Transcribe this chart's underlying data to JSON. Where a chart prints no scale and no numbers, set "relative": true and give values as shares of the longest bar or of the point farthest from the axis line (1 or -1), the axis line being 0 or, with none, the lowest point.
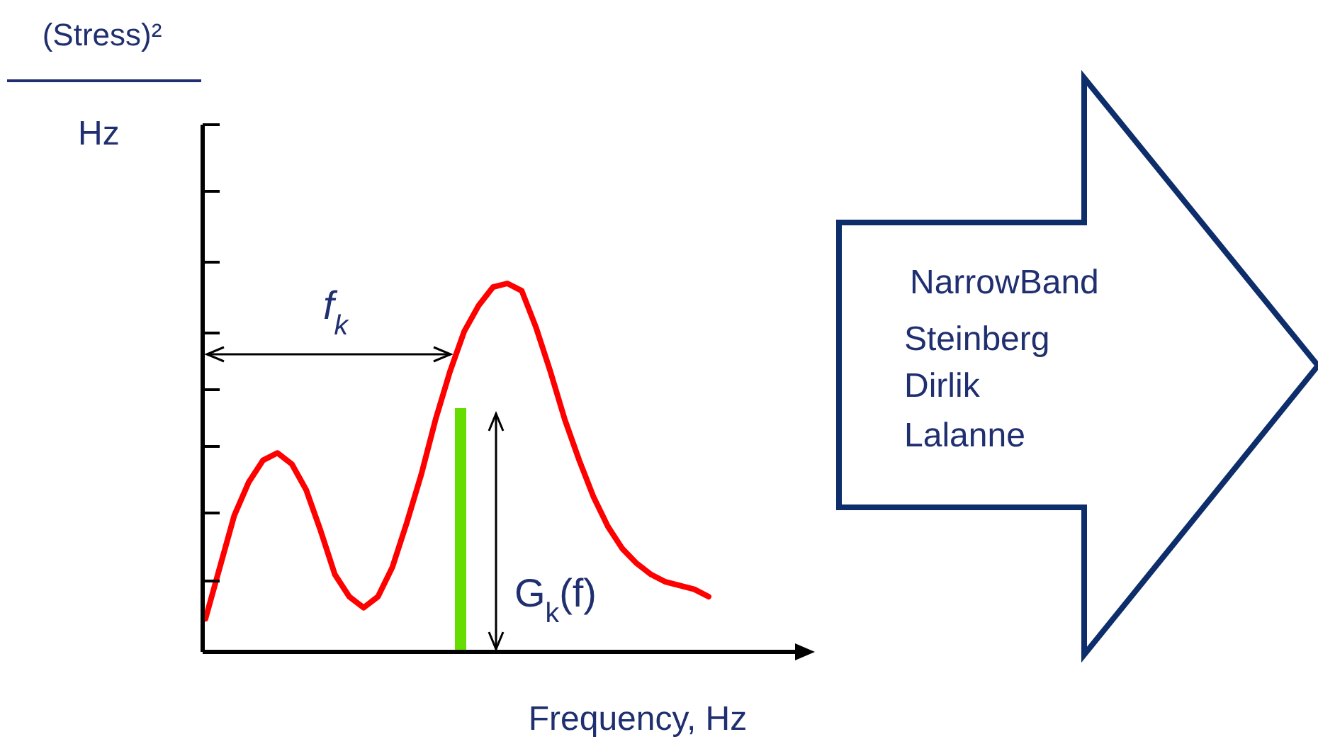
{
  "chart_data": {
    "type": "line",
    "relative": true,
    "xlabel": "Frequency, Hz",
    "categories": [
      null,
      null,
      null,
      null,
      null,
      null,
      null,
      null,
      null,
      null,
      null,
      null,
      null,
      null,
      null,
      null,
      null,
      null,
      null,
      null,
      null,
      null,
      null,
      null,
      null,
      null,
      null,
      null,
      null,
      null,
      null,
      null,
      null,
      null,
      null,
      null
    ],
    "series": [
      {
        "color": "#ff0000",
        "values": [
          0.09,
          0.23,
          0.37,
          0.46,
          0.52,
          0.54,
          0.51,
          0.44,
          0.33,
          0.21,
          0.15,
          0.12,
          0.15,
          0.23,
          0.35,
          0.48,
          0.63,
          0.76,
          0.87,
          0.94,
          0.99,
          1.0,
          0.98,
          0.88,
          0.76,
          0.63,
          0.52,
          0.42,
          0.34,
          0.28,
          0.24,
          0.21,
          0.19,
          0.18,
          0.17,
          0.15
        ]
      }
    ],
    "annotations": [
      "f$_{k}$",
      "G$_{k}$(f)",
      "NarrowBand",
      "Steinberg",
      "Dirlik",
      "Lalanne",
      "Hz",
      "(Stress)²"
    ]
  }
}
